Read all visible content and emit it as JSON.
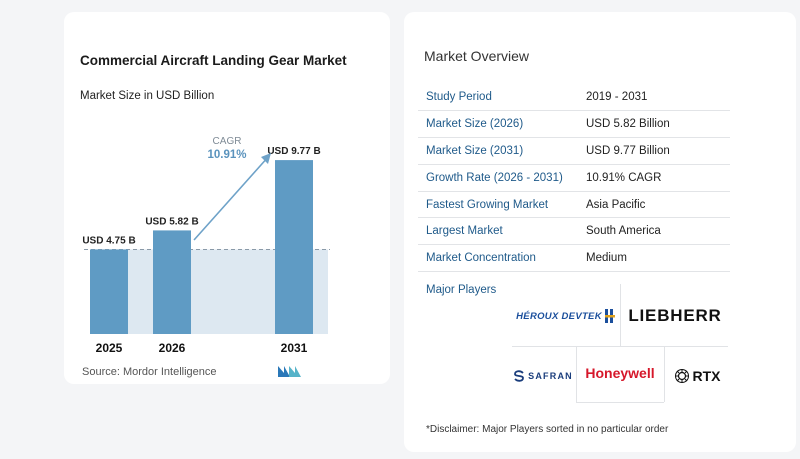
{
  "chart_data": {
    "type": "bar",
    "title": "Commercial Aircraft Landing Gear Market",
    "subtitle": "Market Size in USD Billion",
    "categories": [
      "2025",
      "2026",
      "2031"
    ],
    "values": [
      4.75,
      5.82,
      9.77
    ],
    "value_labels": [
      "USD 4.75 B",
      "USD 5.82 B",
      "USD 9.77 B"
    ],
    "cagr_label": "CAGR",
    "cagr_value": "10.91%",
    "ylim": [
      0,
      10
    ],
    "colors": {
      "bar": "#5f9bc4",
      "bar_top": "#8fb7d4",
      "band": "#dde8f1",
      "arrow": "#6ea2c8",
      "cagr": "#5a93bd"
    }
  },
  "source": "Source:  Mordor Intelligence",
  "overview": {
    "title": "Market Overview",
    "rows": [
      {
        "key": "Study Period",
        "value": "2019 - 2031"
      },
      {
        "key": "Market Size (2026)",
        "value": "USD 5.82 Billion"
      },
      {
        "key": "Market Size (2031)",
        "value": "USD 9.77 Billion"
      },
      {
        "key": "Growth Rate (2026 - 2031)",
        "value": "10.91% CAGR"
      },
      {
        "key": "Fastest Growing Market",
        "value": "Asia Pacific"
      },
      {
        "key": "Largest Market",
        "value": "South America"
      },
      {
        "key": "Market Concentration",
        "value": "Medium"
      }
    ]
  },
  "players": {
    "label": "Major Players",
    "logos": [
      "HÉROUX DEVTEK",
      "LIEBHERR",
      "SAFRAN",
      "Honeywell",
      "RTX"
    ]
  },
  "disclaimer": "*Disclaimer: Major Players sorted in no particular order"
}
